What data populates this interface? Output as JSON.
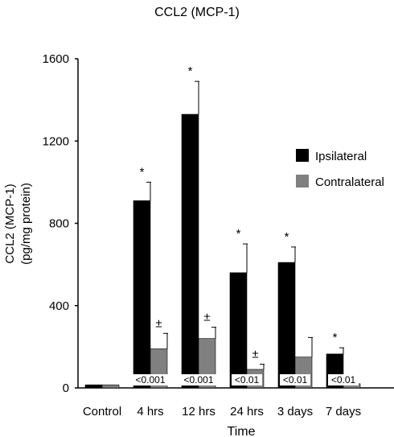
{
  "chart_data": {
    "type": "bar",
    "title": "CCL2 (MCP-1)",
    "ylabel_line1": "CCL2 (MCP-1)",
    "ylabel_line2": "(pg/mg protein)",
    "xlabel": "Time",
    "ylim": [
      0,
      1600
    ],
    "yticks": [
      "0",
      "400",
      "800",
      "1200",
      "1600"
    ],
    "ytick_values": [
      0,
      400,
      800,
      1200,
      1600
    ],
    "categories": [
      "Control",
      "4 hrs",
      "12 hrs",
      "24 hrs",
      "3 days",
      "7 days"
    ],
    "series": [
      {
        "name": "Ipsilateral",
        "color": "#000000",
        "values": [
          15,
          910,
          1330,
          560,
          610,
          165
        ],
        "errors": [
          0,
          90,
          160,
          140,
          75,
          30
        ],
        "annotations": [
          "",
          "*",
          "*",
          "*",
          "*",
          "*"
        ]
      },
      {
        "name": "Contralateral",
        "color": "#808080",
        "values": [
          15,
          190,
          240,
          90,
          150,
          20
        ],
        "errors": [
          0,
          75,
          55,
          25,
          95,
          0
        ],
        "annotations": [
          "",
          "±",
          "±",
          "±",
          "",
          ""
        ]
      }
    ],
    "pvalue_labels": [
      "",
      "<0.001",
      "<0.001",
      "<0.01",
      "<0.01",
      "<0.01"
    ],
    "legend_position": "right",
    "grid": false
  }
}
